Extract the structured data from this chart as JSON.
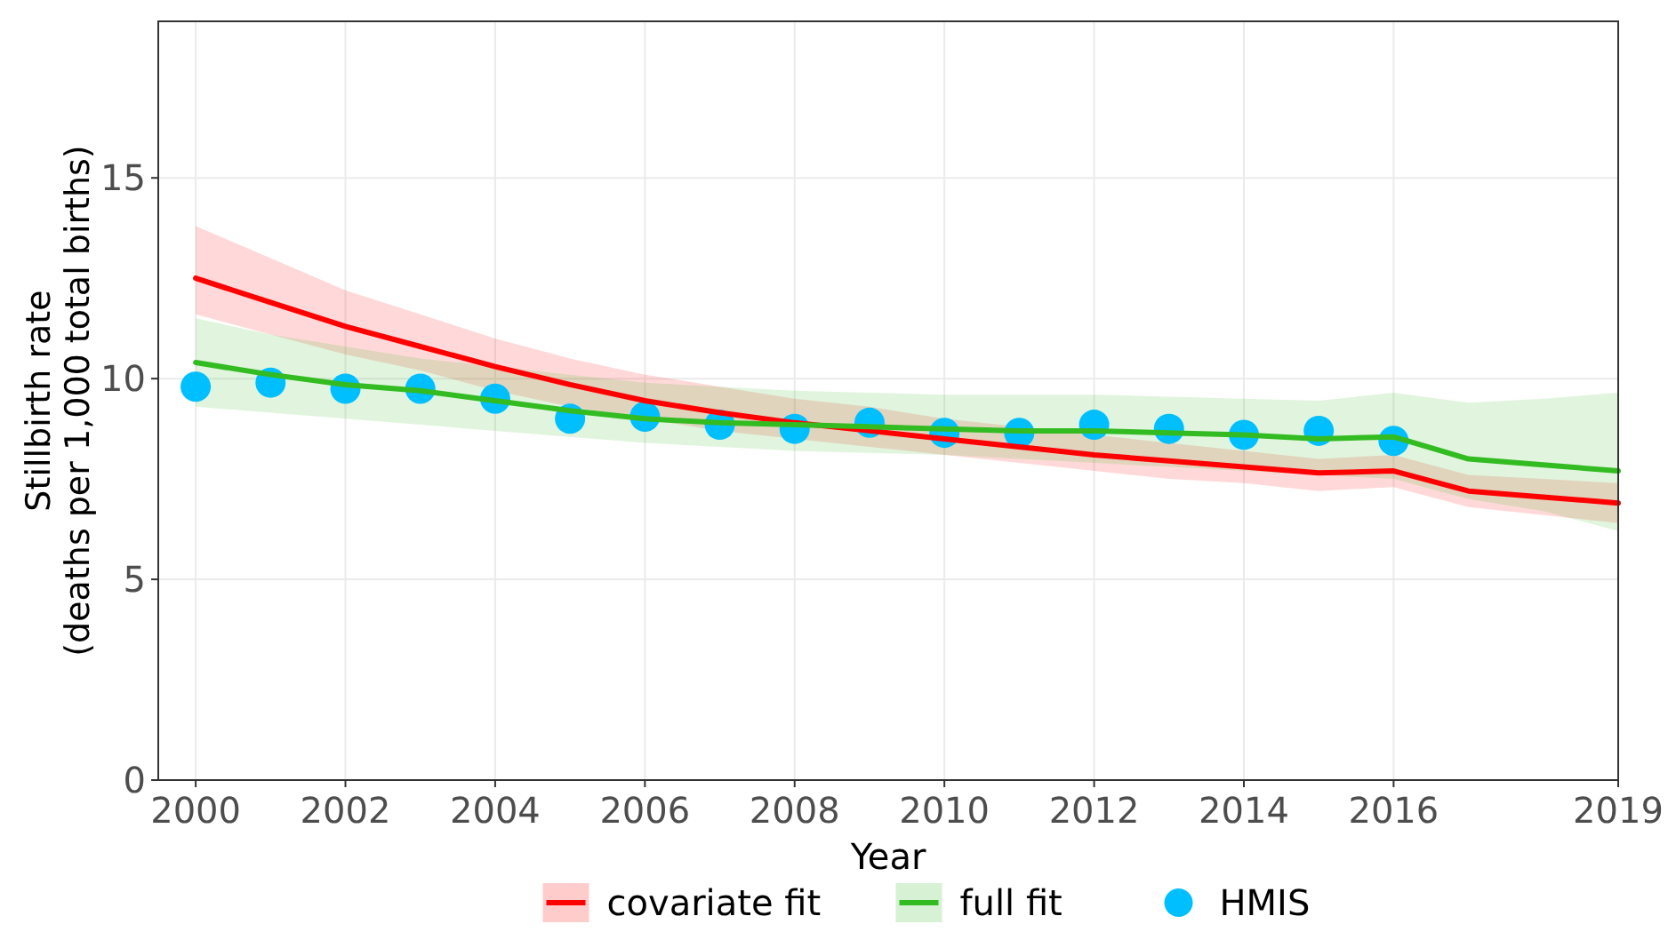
{
  "chart_data": {
    "type": "line",
    "xlabel": "Year",
    "ylabel": "Stillbirth rate\n(deaths per 1,000 total births)",
    "xlim": [
      1999.5,
      2019
    ],
    "xticks": [
      2000,
      2002,
      2004,
      2006,
      2008,
      2010,
      2012,
      2014,
      2016,
      2019
    ],
    "ylim": [
      0,
      18.9
    ],
    "yticks": [
      0,
      5,
      10,
      15
    ],
    "grid": true,
    "legend": "bottom",
    "series": [
      {
        "name": "covariate fit",
        "color": "#ff0000",
        "x": [
          2000,
          2001,
          2002,
          2003,
          2004,
          2005,
          2006,
          2007,
          2008,
          2009,
          2010,
          2011,
          2012,
          2013,
          2014,
          2015,
          2016,
          2017,
          2018,
          2019
        ],
        "values": [
          12.5,
          11.9,
          11.3,
          10.8,
          10.3,
          9.85,
          9.45,
          9.15,
          8.9,
          8.7,
          8.5,
          8.3,
          8.1,
          7.95,
          7.8,
          7.65,
          7.7,
          7.2,
          7.05,
          6.9
        ],
        "upper": [
          13.8,
          13.0,
          12.2,
          11.6,
          11.0,
          10.5,
          10.1,
          9.8,
          9.5,
          9.3,
          9.0,
          8.8,
          8.6,
          8.4,
          8.2,
          8.0,
          8.1,
          7.6,
          7.5,
          7.4
        ],
        "lower": [
          11.6,
          11.1,
          10.6,
          10.2,
          9.7,
          9.3,
          9.0,
          8.7,
          8.5,
          8.3,
          8.1,
          7.9,
          7.7,
          7.5,
          7.4,
          7.2,
          7.3,
          6.8,
          6.6,
          6.4
        ]
      },
      {
        "name": "full fit",
        "color": "#33bb22",
        "x": [
          2000,
          2001,
          2002,
          2003,
          2004,
          2005,
          2006,
          2007,
          2008,
          2009,
          2010,
          2011,
          2012,
          2013,
          2014,
          2015,
          2016,
          2017,
          2018,
          2019
        ],
        "values": [
          10.4,
          10.1,
          9.85,
          9.7,
          9.45,
          9.2,
          9.0,
          8.9,
          8.85,
          8.8,
          8.75,
          8.7,
          8.7,
          8.65,
          8.6,
          8.5,
          8.55,
          8.0,
          7.85,
          7.7
        ],
        "upper": [
          11.5,
          11.1,
          10.8,
          10.5,
          10.3,
          10.1,
          9.9,
          9.8,
          9.7,
          9.65,
          9.6,
          9.6,
          9.6,
          9.55,
          9.5,
          9.45,
          9.65,
          9.4,
          9.5,
          9.65
        ],
        "lower": [
          9.3,
          9.15,
          9.0,
          8.85,
          8.7,
          8.55,
          8.4,
          8.3,
          8.2,
          8.15,
          8.1,
          8.0,
          7.9,
          7.8,
          7.7,
          7.6,
          7.5,
          7.0,
          6.7,
          6.2
        ]
      },
      {
        "name": "HMIS",
        "type": "scatter",
        "color": "#00bfff",
        "marker": "circle",
        "x": [
          2000,
          2001,
          2002,
          2003,
          2004,
          2005,
          2006,
          2007,
          2008,
          2009,
          2010,
          2011,
          2012,
          2013,
          2014,
          2015,
          2016
        ],
        "values": [
          9.8,
          9.9,
          9.75,
          9.75,
          9.5,
          9.0,
          9.05,
          8.85,
          8.75,
          8.9,
          8.65,
          8.65,
          8.85,
          8.75,
          8.6,
          8.7,
          8.45
        ]
      }
    ]
  }
}
